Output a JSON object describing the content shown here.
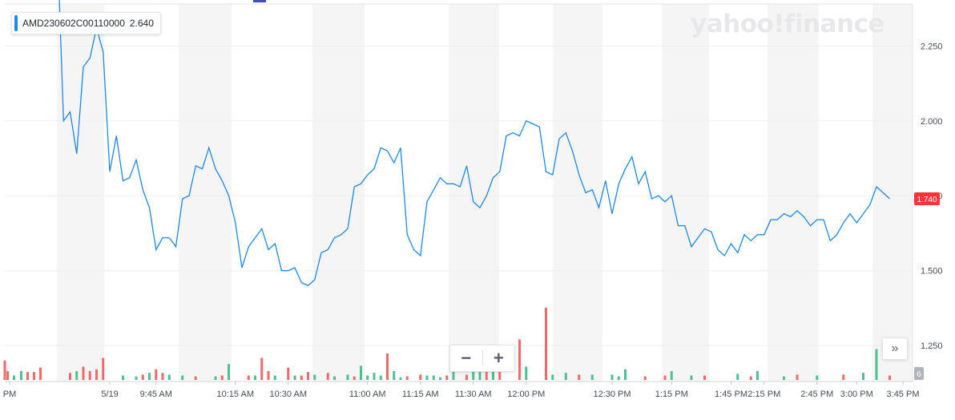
{
  "legend": {
    "name": "AMD230602C00110000",
    "value": "2.640"
  },
  "watermark": "yahoo!finance",
  "controls": {
    "zoom_out": "−",
    "zoom_in": "+",
    "expand": "»"
  },
  "colors": {
    "line": "#1e88e5",
    "up": "#4cc090",
    "down": "#f06a6a",
    "last_price_bg": "#ff333a",
    "volume_tag_bg": "#aeb4ba"
  },
  "chart_data": {
    "type": "line",
    "series": [
      {
        "name": "AMD230602C00110000",
        "values": [
          [
            0,
            2.64
          ],
          [
            1,
            2.0
          ],
          [
            2,
            2.03
          ],
          [
            3,
            1.89
          ],
          [
            4,
            2.18
          ],
          [
            5,
            2.21
          ],
          [
            6,
            2.31
          ],
          [
            7,
            2.23
          ],
          [
            8,
            1.83
          ],
          [
            9,
            1.95
          ],
          [
            10,
            1.8
          ],
          [
            11,
            1.81
          ],
          [
            12,
            1.87
          ],
          [
            13,
            1.77
          ],
          [
            14,
            1.71
          ],
          [
            15,
            1.57
          ],
          [
            16,
            1.61
          ],
          [
            17,
            1.61
          ],
          [
            18,
            1.58
          ],
          [
            19,
            1.74
          ],
          [
            20,
            1.75
          ],
          [
            21,
            1.85
          ],
          [
            22,
            1.84
          ],
          [
            23,
            1.91
          ],
          [
            24,
            1.84
          ],
          [
            25,
            1.8
          ],
          [
            26,
            1.75
          ],
          [
            27,
            1.66
          ],
          [
            28,
            1.51
          ],
          [
            29,
            1.58
          ],
          [
            30,
            1.61
          ],
          [
            31,
            1.64
          ],
          [
            32,
            1.57
          ],
          [
            33,
            1.59
          ],
          [
            34,
            1.5
          ],
          [
            35,
            1.5
          ],
          [
            36,
            1.51
          ],
          [
            37,
            1.46
          ],
          [
            38,
            1.45
          ],
          [
            39,
            1.47
          ],
          [
            40,
            1.56
          ],
          [
            41,
            1.57
          ],
          [
            42,
            1.61
          ],
          [
            43,
            1.62
          ],
          [
            44,
            1.64
          ],
          [
            45,
            1.78
          ],
          [
            46,
            1.79
          ],
          [
            47,
            1.82
          ],
          [
            48,
            1.84
          ],
          [
            49,
            1.91
          ],
          [
            50,
            1.9
          ],
          [
            51,
            1.86
          ],
          [
            52,
            1.91
          ],
          [
            53,
            1.62
          ],
          [
            54,
            1.57
          ],
          [
            55,
            1.55
          ],
          [
            56,
            1.73
          ],
          [
            57,
            1.77
          ],
          [
            58,
            1.81
          ],
          [
            59,
            1.79
          ],
          [
            60,
            1.79
          ],
          [
            61,
            1.78
          ],
          [
            62,
            1.85
          ],
          [
            63,
            1.73
          ],
          [
            64,
            1.71
          ],
          [
            65,
            1.75
          ],
          [
            66,
            1.81
          ],
          [
            67,
            1.83
          ],
          [
            68,
            1.95
          ],
          [
            69,
            1.96
          ],
          [
            70,
            1.95
          ],
          [
            71,
            2.0
          ],
          [
            72,
            1.99
          ],
          [
            73,
            1.98
          ],
          [
            74,
            1.83
          ],
          [
            75,
            1.82
          ],
          [
            76,
            1.94
          ],
          [
            77,
            1.96
          ],
          [
            78,
            1.9
          ],
          [
            79,
            1.82
          ],
          [
            80,
            1.76
          ],
          [
            81,
            1.77
          ],
          [
            82,
            1.71
          ],
          [
            83,
            1.8
          ],
          [
            84,
            1.69
          ],
          [
            85,
            1.79
          ],
          [
            86,
            1.84
          ],
          [
            87,
            1.88
          ],
          [
            88,
            1.79
          ],
          [
            89,
            1.83
          ],
          [
            90,
            1.74
          ],
          [
            91,
            1.75
          ],
          [
            92,
            1.73
          ],
          [
            93,
            1.75
          ],
          [
            94,
            1.65
          ],
          [
            95,
            1.65
          ],
          [
            96,
            1.58
          ],
          [
            97,
            1.61
          ],
          [
            98,
            1.64
          ],
          [
            99,
            1.63
          ],
          [
            100,
            1.57
          ],
          [
            101,
            1.55
          ],
          [
            102,
            1.59
          ],
          [
            103,
            1.56
          ],
          [
            104,
            1.62
          ],
          [
            105,
            1.6
          ],
          [
            106,
            1.62
          ],
          [
            107,
            1.62
          ],
          [
            108,
            1.67
          ],
          [
            109,
            1.67
          ],
          [
            110,
            1.69
          ],
          [
            111,
            1.68
          ],
          [
            112,
            1.7
          ],
          [
            113,
            1.68
          ],
          [
            114,
            1.65
          ],
          [
            115,
            1.67
          ],
          [
            116,
            1.67
          ],
          [
            117,
            1.6
          ],
          [
            118,
            1.62
          ],
          [
            119,
            1.66
          ],
          [
            120,
            1.69
          ],
          [
            121,
            1.66
          ],
          [
            122,
            1.69
          ],
          [
            123,
            1.72
          ],
          [
            124,
            1.78
          ],
          [
            125,
            1.76
          ],
          [
            126,
            1.74
          ]
        ]
      }
    ],
    "volume": [
      {
        "i": 0,
        "v": 0.22,
        "d": "down"
      },
      {
        "i": 2,
        "v": 0.08,
        "d": "down"
      },
      {
        "i": 3,
        "v": 0.1,
        "d": "up"
      },
      {
        "i": 4,
        "v": 0.15,
        "d": "down"
      },
      {
        "i": 5,
        "v": 0.1,
        "d": "down"
      },
      {
        "i": 6,
        "v": 0.12,
        "d": "down"
      },
      {
        "i": 7,
        "v": 0.25,
        "d": "down"
      },
      {
        "i": 10,
        "v": 0.05,
        "d": "up"
      },
      {
        "i": 12,
        "v": 0.04,
        "d": "up"
      },
      {
        "i": 13,
        "v": 0.06,
        "d": "down"
      },
      {
        "i": 14,
        "v": 0.08,
        "d": "up"
      },
      {
        "i": 15,
        "v": 0.12,
        "d": "down"
      },
      {
        "i": 16,
        "v": 0.08,
        "d": "down"
      },
      {
        "i": 17,
        "v": 0.06,
        "d": "up"
      },
      {
        "i": 19,
        "v": 0.05,
        "d": "up"
      },
      {
        "i": 21,
        "v": 0.04,
        "d": "down"
      },
      {
        "i": 24,
        "v": 0.04,
        "d": "up"
      },
      {
        "i": 25,
        "v": 0.05,
        "d": "down"
      },
      {
        "i": 26,
        "v": 0.18,
        "d": "up"
      },
      {
        "i": 29,
        "v": 0.05,
        "d": "down"
      },
      {
        "i": 30,
        "v": 0.05,
        "d": "up"
      },
      {
        "i": 31,
        "v": 0.25,
        "d": "down"
      },
      {
        "i": 32,
        "v": 0.1,
        "d": "down"
      },
      {
        "i": 33,
        "v": 0.05,
        "d": "up"
      },
      {
        "i": 35,
        "v": 0.14,
        "d": "down"
      },
      {
        "i": 36,
        "v": 0.05,
        "d": "up"
      },
      {
        "i": 37,
        "v": 0.05,
        "d": "down"
      },
      {
        "i": 38,
        "v": 0.09,
        "d": "down"
      },
      {
        "i": 39,
        "v": 0.06,
        "d": "up"
      },
      {
        "i": 41,
        "v": 0.08,
        "d": "down"
      },
      {
        "i": 42,
        "v": 0.04,
        "d": "up"
      },
      {
        "i": 44,
        "v": 0.06,
        "d": "up"
      },
      {
        "i": 45,
        "v": 0.04,
        "d": "down"
      },
      {
        "i": 46,
        "v": 0.16,
        "d": "up"
      },
      {
        "i": 47,
        "v": 0.05,
        "d": "up"
      },
      {
        "i": 48,
        "v": 0.08,
        "d": "up"
      },
      {
        "i": 49,
        "v": 0.05,
        "d": "up"
      },
      {
        "i": 50,
        "v": 0.3,
        "d": "down"
      },
      {
        "i": 51,
        "v": 0.1,
        "d": "up"
      },
      {
        "i": 52,
        "v": 0.03,
        "d": "up"
      },
      {
        "i": 53,
        "v": 0.04,
        "d": "down"
      },
      {
        "i": 55,
        "v": 0.06,
        "d": "down"
      },
      {
        "i": 56,
        "v": 0.05,
        "d": "up"
      },
      {
        "i": 57,
        "v": 0.05,
        "d": "up"
      },
      {
        "i": 58,
        "v": 0.03,
        "d": "up"
      },
      {
        "i": 59,
        "v": 0.05,
        "d": "down"
      },
      {
        "i": 60,
        "v": 0.1,
        "d": "up"
      },
      {
        "i": 62,
        "v": 0.06,
        "d": "down"
      },
      {
        "i": 63,
        "v": 0.12,
        "d": "up"
      },
      {
        "i": 64,
        "v": 0.13,
        "d": "up"
      },
      {
        "i": 65,
        "v": 0.12,
        "d": "down"
      },
      {
        "i": 66,
        "v": 0.22,
        "d": "up"
      },
      {
        "i": 67,
        "v": 0.14,
        "d": "down"
      },
      {
        "i": 70,
        "v": 0.46,
        "d": "down"
      },
      {
        "i": 71,
        "v": 0.15,
        "d": "up"
      },
      {
        "i": 74,
        "v": 0.82,
        "d": "down"
      },
      {
        "i": 75,
        "v": 0.06,
        "d": "up"
      },
      {
        "i": 77,
        "v": 0.08,
        "d": "up"
      },
      {
        "i": 79,
        "v": 0.06,
        "d": "down"
      },
      {
        "i": 81,
        "v": 0.06,
        "d": "up"
      },
      {
        "i": 84,
        "v": 0.06,
        "d": "up"
      },
      {
        "i": 85,
        "v": 0.04,
        "d": "up"
      },
      {
        "i": 86,
        "v": 0.12,
        "d": "up"
      },
      {
        "i": 89,
        "v": 0.04,
        "d": "down"
      },
      {
        "i": 92,
        "v": 0.05,
        "d": "down"
      },
      {
        "i": 93,
        "v": 0.1,
        "d": "up"
      },
      {
        "i": 96,
        "v": 0.05,
        "d": "up"
      },
      {
        "i": 98,
        "v": 0.05,
        "d": "down"
      },
      {
        "i": 103,
        "v": 0.07,
        "d": "up"
      },
      {
        "i": 105,
        "v": 0.04,
        "d": "down"
      },
      {
        "i": 106,
        "v": 0.1,
        "d": "up"
      },
      {
        "i": 110,
        "v": 0.04,
        "d": "up"
      },
      {
        "i": 112,
        "v": 0.06,
        "d": "down"
      },
      {
        "i": 115,
        "v": 0.05,
        "d": "up"
      },
      {
        "i": 119,
        "v": 0.06,
        "d": "down"
      },
      {
        "i": 122,
        "v": 0.08,
        "d": "up"
      },
      {
        "i": 124,
        "v": 0.35,
        "d": "up"
      },
      {
        "i": 126,
        "v": 0.05,
        "d": "down"
      }
    ],
    "ylim": [
      1.13,
      2.39
    ],
    "y_ticks": [
      1.25,
      1.5,
      1.75,
      2.0,
      2.25
    ],
    "y_tick_labels": [
      "1.250",
      "1.500",
      "1.750",
      "2.000",
      "2.250"
    ],
    "x_ticks": [
      {
        "i": 0,
        "label": "PM"
      },
      {
        "i": 8,
        "label": "5/19"
      },
      {
        "i": 15,
        "label": "9:45 AM"
      },
      {
        "i": 27,
        "label": "10:15 AM"
      },
      {
        "i": 35,
        "label": "10:30 AM"
      },
      {
        "i": 47,
        "label": "11:00 AM"
      },
      {
        "i": 55,
        "label": "11:15 AM"
      },
      {
        "i": 63,
        "label": "11:30 AM"
      },
      {
        "i": 71,
        "label": "12:00 PM"
      },
      {
        "i": 84,
        "label": "12:30 PM"
      },
      {
        "i": 93,
        "label": "1:15 PM"
      },
      {
        "i": 102,
        "label": "1:45 PM"
      },
      {
        "i": 107,
        "label": "2:15 PM"
      },
      {
        "i": 115,
        "label": "2:45 PM"
      },
      {
        "i": 121,
        "label": "3:00 PM"
      },
      {
        "i": 128,
        "label": "3:45 PM"
      }
    ],
    "last_price_label": "1.740",
    "volume_tag": "6",
    "grid": true,
    "legend_position": "top-left"
  }
}
